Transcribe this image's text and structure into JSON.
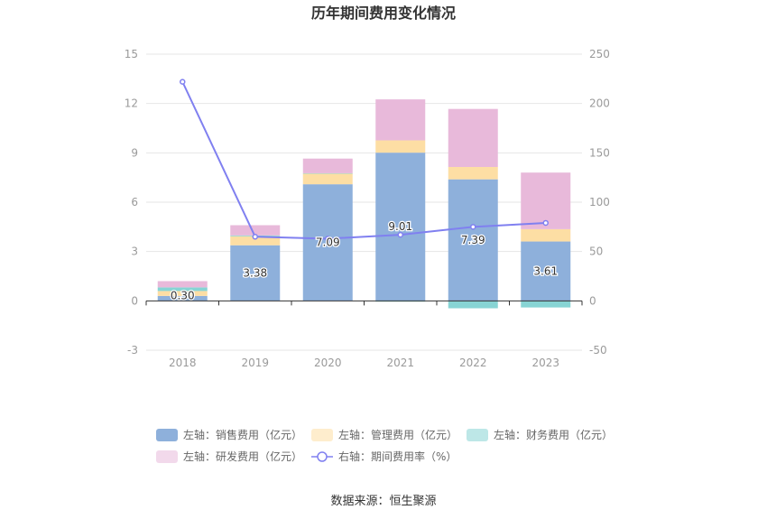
{
  "chart_data": {
    "type": "bar",
    "title": "历年期间费用变化情况",
    "categories": [
      "2018",
      "2019",
      "2020",
      "2021",
      "2022",
      "2023"
    ],
    "left_axis": {
      "ylim": [
        -3,
        15
      ],
      "ticks": [
        "15",
        "12",
        "9",
        "6",
        "3",
        "0",
        "-3"
      ]
    },
    "right_axis": {
      "ylim": [
        -50,
        250
      ],
      "ticks": [
        "250",
        "200",
        "150",
        "100",
        "50",
        "0",
        "-50"
      ]
    },
    "series": [
      {
        "name": "左轴：销售费用（亿元）",
        "axis": "left",
        "kind": "bar",
        "color": "#8eb0db",
        "values": [
          0.3,
          3.38,
          7.09,
          9.01,
          7.39,
          3.61
        ]
      },
      {
        "name": "左轴：管理费用（亿元）",
        "axis": "left",
        "kind": "bar",
        "color": "#fddea4",
        "values": [
          0.3,
          0.55,
          0.65,
          0.75,
          0.75,
          0.75
        ]
      },
      {
        "name": "左轴：财务费用（亿元）",
        "axis": "left",
        "kind": "bar",
        "color": "#87d4d4",
        "values": [
          0.22,
          0.05,
          0.02,
          -0.05,
          -0.45,
          -0.4
        ]
      },
      {
        "name": "左轴：研发费用（亿元）",
        "axis": "left",
        "kind": "bar",
        "color": "#e8b9da",
        "values": [
          0.38,
          0.62,
          0.89,
          2.49,
          3.53,
          3.44
        ]
      },
      {
        "name": "右轴：期间费用率（%）",
        "axis": "right",
        "kind": "line",
        "color": "#8080f0",
        "values": [
          222,
          65,
          63,
          67,
          75,
          79
        ]
      }
    ],
    "data_labels": [
      "0.30",
      "3.38",
      "7.09",
      "9.01",
      "7.39",
      "3.61"
    ],
    "legend_position": "bottom",
    "grid": true
  },
  "source": "数据来源：恒生聚源"
}
